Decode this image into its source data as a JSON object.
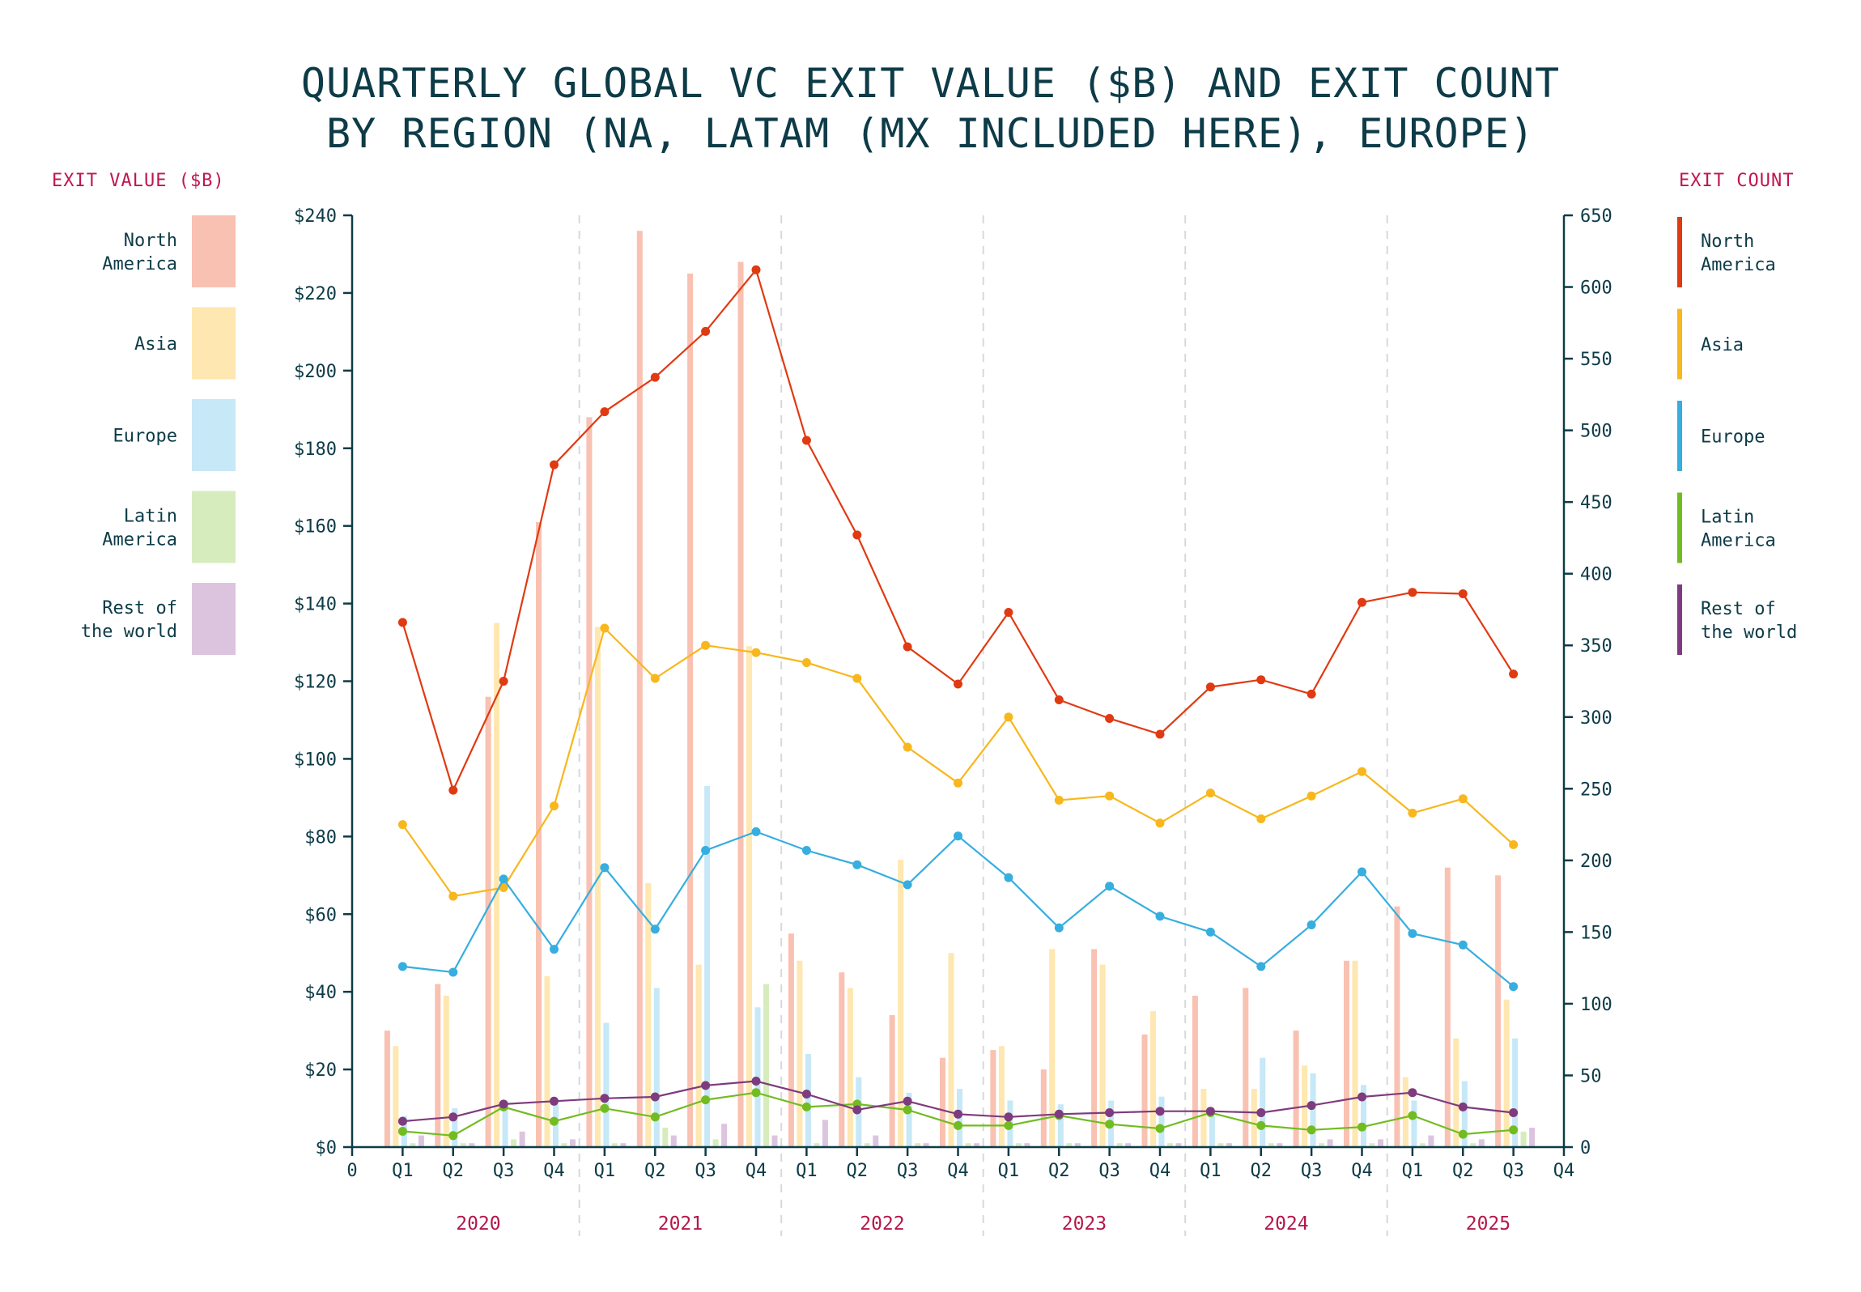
{
  "chart_data": {
    "type": "bar+line",
    "title_lines": [
      "QUARTERLY GLOBAL VC EXIT VALUE ($B) AND EXIT COUNT",
      "BY REGION (NA, LATAM (MX INCLUDED HERE), EUROPE)"
    ],
    "left_axis_title": "EXIT VALUE ($B)",
    "right_axis_title": "EXIT COUNT",
    "left_ylim": [
      0,
      240
    ],
    "right_ylim": [
      0,
      650
    ],
    "left_ticks": [
      0,
      20,
      40,
      60,
      80,
      100,
      120,
      140,
      160,
      180,
      200,
      220,
      240
    ],
    "left_tick_labels": [
      "$0",
      "$20",
      "$40",
      "$60",
      "$80",
      "$100",
      "$120",
      "$140",
      "$160",
      "$180",
      "$200",
      "$220",
      "$240"
    ],
    "right_ticks": [
      0,
      50,
      100,
      150,
      200,
      250,
      300,
      350,
      400,
      450,
      500,
      550,
      600,
      650
    ],
    "right_tick_labels": [
      "0",
      "50",
      "100",
      "150",
      "200",
      "250",
      "300",
      "350",
      "400",
      "450",
      "500",
      "550",
      "600",
      "650"
    ],
    "x_tick_labels": [
      "0",
      "Q1",
      "Q2",
      "Q3",
      "Q4",
      "Q1",
      "Q2",
      "Q3",
      "Q4",
      "Q1",
      "Q2",
      "Q3",
      "Q4",
      "Q1",
      "Q2",
      "Q3",
      "Q4",
      "Q1",
      "Q2",
      "Q3",
      "Q4",
      "Q1",
      "Q2",
      "Q3",
      "Q4"
    ],
    "years": [
      "2020",
      "2021",
      "2022",
      "2023",
      "2024",
      "2025"
    ],
    "categories": [
      "2020 Q1",
      "2020 Q2",
      "2020 Q3",
      "2020 Q4",
      "2021 Q1",
      "2021 Q2",
      "2021 Q3",
      "2021 Q4",
      "2022 Q1",
      "2022 Q2",
      "2022 Q3",
      "2022 Q4",
      "2023 Q1",
      "2023 Q2",
      "2023 Q3",
      "2023 Q4",
      "2024 Q1",
      "2024 Q2",
      "2024 Q3",
      "2024 Q4",
      "2025 Q1",
      "2025 Q2",
      "2025 Q3"
    ],
    "value_series": [
      {
        "name": "North America",
        "color": "#f9c1b1",
        "values": [
          30,
          42,
          116,
          161,
          188,
          236,
          225,
          228,
          55,
          45,
          34,
          23,
          25,
          20,
          51,
          29,
          39,
          41,
          30,
          48,
          62,
          72,
          70
        ]
      },
      {
        "name": "Asia",
        "color": "#fee7b0",
        "values": [
          26,
          39,
          135,
          44,
          134,
          68,
          47,
          129,
          48,
          41,
          74,
          50,
          26,
          51,
          47,
          35,
          15,
          15,
          21,
          48,
          18,
          28,
          38
        ]
      },
      {
        "name": "Europe",
        "color": "#c6e8f7",
        "values": [
          8,
          10,
          12,
          11,
          32,
          41,
          93,
          36,
          24,
          18,
          14,
          15,
          12,
          11,
          12,
          13,
          8,
          23,
          19,
          16,
          12,
          17,
          28
        ]
      },
      {
        "name": "Latin America",
        "color": "#d6ecbd",
        "values": [
          1,
          1,
          2,
          1,
          1,
          5,
          2,
          42,
          1,
          1,
          1,
          1,
          1,
          1,
          1,
          1,
          1,
          1,
          1,
          1,
          1,
          1,
          4
        ]
      },
      {
        "name": "Rest of the world",
        "color": "#dcc4de",
        "values": [
          3,
          1,
          4,
          2,
          1,
          3,
          6,
          3,
          7,
          3,
          1,
          1,
          1,
          1,
          1,
          1,
          1,
          1,
          2,
          2,
          3,
          2,
          5
        ]
      }
    ],
    "count_series": [
      {
        "name": "North America",
        "color": "#e03a12",
        "values": [
          366,
          249,
          325,
          476,
          513,
          537,
          569,
          612,
          493,
          427,
          349,
          323,
          373,
          312,
          299,
          288,
          321,
          326,
          316,
          380,
          387,
          386,
          330
        ]
      },
      {
        "name": "Asia",
        "color": "#f8b71c",
        "values": [
          225,
          175,
          181,
          238,
          362,
          327,
          350,
          345,
          338,
          327,
          279,
          254,
          300,
          242,
          245,
          226,
          247,
          229,
          245,
          262,
          233,
          243,
          211
        ]
      },
      {
        "name": "Europe",
        "color": "#36aedf",
        "values": [
          126,
          122,
          187,
          138,
          195,
          152,
          207,
          220,
          207,
          197,
          183,
          217,
          188,
          153,
          182,
          161,
          150,
          126,
          155,
          192,
          149,
          141,
          112
        ]
      },
      {
        "name": "Latin America",
        "color": "#72bc21",
        "values": [
          11,
          8,
          28,
          18,
          27,
          21,
          33,
          38,
          28,
          30,
          26,
          15,
          15,
          22,
          16,
          13,
          24,
          15,
          12,
          14,
          22,
          9,
          12
        ]
      },
      {
        "name": "Rest of the world",
        "color": "#7e3b7e",
        "values": [
          18,
          21,
          30,
          32,
          34,
          35,
          43,
          46,
          37,
          26,
          32,
          23,
          21,
          23,
          24,
          25,
          25,
          24,
          29,
          35,
          38,
          28,
          24
        ]
      }
    ],
    "legend_left": [
      {
        "lines": [
          "North",
          "America"
        ],
        "color": "#f9c1b1"
      },
      {
        "lines": [
          "Asia"
        ],
        "color": "#fee7b0"
      },
      {
        "lines": [
          "Europe"
        ],
        "color": "#c6e8f7"
      },
      {
        "lines": [
          "Latin",
          "America"
        ],
        "color": "#d6ecbd"
      },
      {
        "lines": [
          "Rest of",
          "the world"
        ],
        "color": "#dcc4de"
      }
    ],
    "legend_right": [
      {
        "lines": [
          "North",
          "America"
        ],
        "color": "#e03a12"
      },
      {
        "lines": [
          "Asia"
        ],
        "color": "#f8b71c"
      },
      {
        "lines": [
          "Europe"
        ],
        "color": "#36aedf"
      },
      {
        "lines": [
          "Latin",
          "America"
        ],
        "color": "#72bc21"
      },
      {
        "lines": [
          "Rest of",
          "the world"
        ],
        "color": "#7e3b7e"
      }
    ],
    "axis_color": "#0d3b47",
    "year_label_color": "#b5174a"
  }
}
